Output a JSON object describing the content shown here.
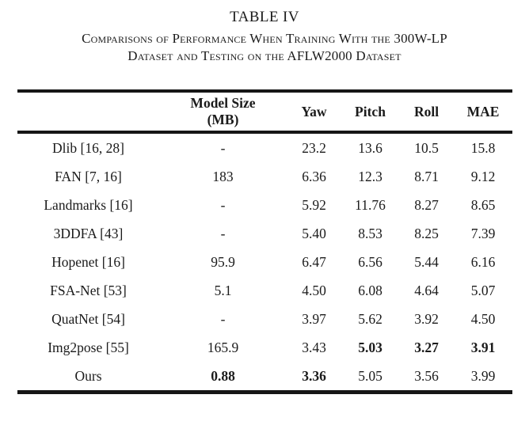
{
  "page": {
    "title": "TABLE IV",
    "caption_line1": "Comparisons of Performance When Training With the 300W-LP",
    "caption_line2": "Dataset and Testing on the AFLW2000 Dataset"
  },
  "table": {
    "header": {
      "method": "",
      "model_size_line1": "Model Size",
      "model_size_line2": "(MB)",
      "yaw": "Yaw",
      "pitch": "Pitch",
      "roll": "Roll",
      "mae": "MAE"
    },
    "rows": [
      {
        "cells": [
          "Dlib [16, 28]",
          "-",
          "23.2",
          "13.6",
          "10.5",
          "15.8"
        ],
        "bold": [
          false,
          false,
          false,
          false,
          false,
          false
        ]
      },
      {
        "cells": [
          "FAN [7, 16]",
          "183",
          "6.36",
          "12.3",
          "8.71",
          "9.12"
        ],
        "bold": [
          false,
          false,
          false,
          false,
          false,
          false
        ]
      },
      {
        "cells": [
          "Landmarks [16]",
          "-",
          "5.92",
          "11.76",
          "8.27",
          "8.65"
        ],
        "bold": [
          false,
          false,
          false,
          false,
          false,
          false
        ]
      },
      {
        "cells": [
          "3DDFA [43]",
          "-",
          "5.40",
          "8.53",
          "8.25",
          "7.39"
        ],
        "bold": [
          false,
          false,
          false,
          false,
          false,
          false
        ]
      },
      {
        "cells": [
          "Hopenet [16]",
          "95.9",
          "6.47",
          "6.56",
          "5.44",
          "6.16"
        ],
        "bold": [
          false,
          false,
          false,
          false,
          false,
          false
        ]
      },
      {
        "cells": [
          "FSA-Net [53]",
          "5.1",
          "4.50",
          "6.08",
          "4.64",
          "5.07"
        ],
        "bold": [
          false,
          false,
          false,
          false,
          false,
          false
        ]
      },
      {
        "cells": [
          "QuatNet [54]",
          "-",
          "3.97",
          "5.62",
          "3.92",
          "4.50"
        ],
        "bold": [
          false,
          false,
          false,
          false,
          false,
          false
        ]
      },
      {
        "cells": [
          "Img2pose [55]",
          "165.9",
          "3.43",
          "5.03",
          "3.27",
          "3.91"
        ],
        "bold": [
          false,
          false,
          false,
          true,
          true,
          true
        ]
      },
      {
        "cells": [
          "Ours",
          "0.88",
          "3.36",
          "5.05",
          "3.56",
          "3.99"
        ],
        "bold": [
          false,
          true,
          true,
          false,
          false,
          false
        ]
      }
    ]
  },
  "colors": {
    "text": "#1b1b1b",
    "rule": "#161616",
    "background": "#ffffff"
  }
}
